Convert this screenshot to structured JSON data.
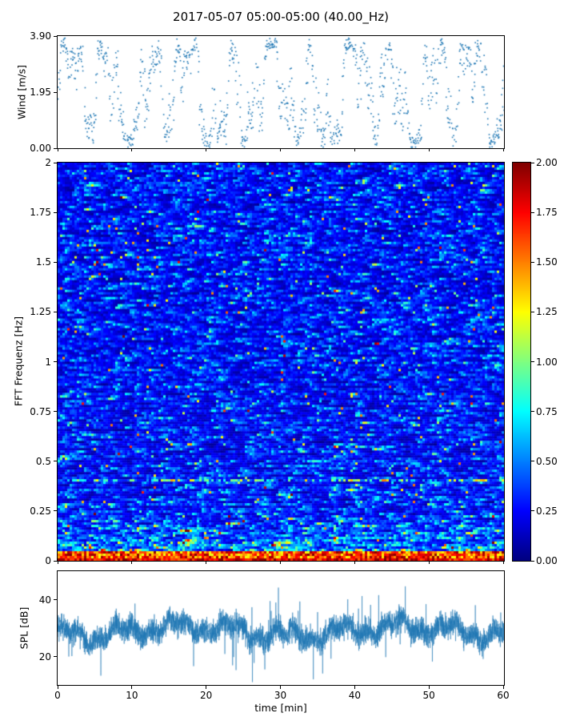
{
  "title": "2017-05-07 05:00-05:00 (40.00_Hz)",
  "accent_color": "#1f77b4",
  "chart_data": [
    {
      "type": "scatter",
      "name": "wind",
      "ylabel": "Wind [m/s]",
      "ylim": [
        0,
        3.9
      ],
      "ytick_values": [
        3.9,
        1.95,
        0
      ],
      "ytick_labels": [
        "3.90",
        "1.95",
        "0.00"
      ],
      "xlim": [
        0,
        60
      ],
      "marker_color": "#1f77b4",
      "n_points": 1400,
      "description": "wind speed scatter alternating in dense clusters between a low band ~0.3-1.2 m/s and a high band ~2.3-3.7 m/s over 60 minutes",
      "seed": 7
    },
    {
      "type": "heatmap",
      "name": "fft-spectrogram",
      "ylabel": "FFT Frequenz [Hz]",
      "ylim": [
        0,
        2
      ],
      "ytick_values": [
        2,
        1.75,
        1.5,
        1.25,
        1,
        0.75,
        0.5,
        0.25,
        0
      ],
      "ytick_labels": [
        "2",
        "1.75",
        "1.5",
        "1.25",
        "1",
        "0.75",
        "0.5",
        "0.25",
        "0"
      ],
      "xlim": [
        0,
        60
      ],
      "zlim": [
        0,
        2
      ],
      "colormap": "jet",
      "colorbar_tick_values": [
        2,
        1.75,
        1.5,
        1.25,
        1,
        0.75,
        0.5,
        0.25,
        0
      ],
      "colorbar_tick_labels": [
        "2.00",
        "1.75",
        "1.50",
        "1.25",
        "1.00",
        "0.75",
        "0.50",
        "0.25",
        "0.00"
      ],
      "cols": 186,
      "rows": 166,
      "description": "spectrogram mostly dark-blue background (values ~0.1-0.5) with sparse horizontal cyan/green/yellow streaks up to ~1.6, intensity increasing toward low frequencies; hot red/orange band below ~0.05 Hz (values ~1.2-2.0)",
      "seed": 11
    },
    {
      "type": "line",
      "name": "spl",
      "ylabel": "SPL [dB]",
      "ylim": [
        10,
        50
      ],
      "ytick_values": [
        40,
        20
      ],
      "ytick_labels": [
        "40",
        "20"
      ],
      "xlim": [
        0,
        60
      ],
      "xtick_values": [
        0,
        10,
        20,
        30,
        40,
        50,
        60
      ],
      "xtick_labels": [
        "0",
        "10",
        "20",
        "30",
        "40",
        "50",
        "60"
      ],
      "xlabel": "time [min]",
      "line_color": "#1f77b4",
      "n_points": 4500,
      "description": "dense noisy SPL trace forming a band around 25-35 dB with thin spikes down to ~13 dB and up to ~47 dB",
      "seed": 23
    }
  ]
}
